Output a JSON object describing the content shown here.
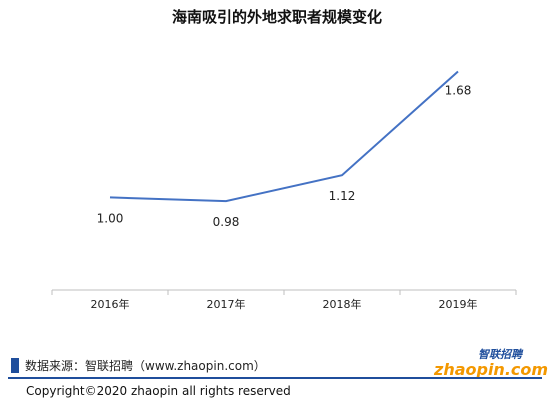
{
  "chart_data": {
    "type": "line",
    "title": "海南吸引的外地求职者规模变化",
    "categories": [
      "2016年",
      "2017年",
      "2018年",
      "2019年"
    ],
    "values": [
      1.0,
      0.98,
      1.12,
      1.68
    ],
    "value_labels": [
      "1.00",
      "0.98",
      "1.12",
      "1.68"
    ],
    "ylim": [
      0.5,
      1.85
    ],
    "grid": false,
    "legend": "none",
    "line_color": "#4472c4"
  },
  "source": "数据来源：智联招聘（www.zhaopin.com）",
  "copyright": "Copyright©2020 zhaopin all rights reserved",
  "logo": {
    "text_cn": "智联招聘",
    "text_en": "zhaopin.com",
    "colors": {
      "orange": "#f39800",
      "blue": "#1f4e9c"
    }
  }
}
